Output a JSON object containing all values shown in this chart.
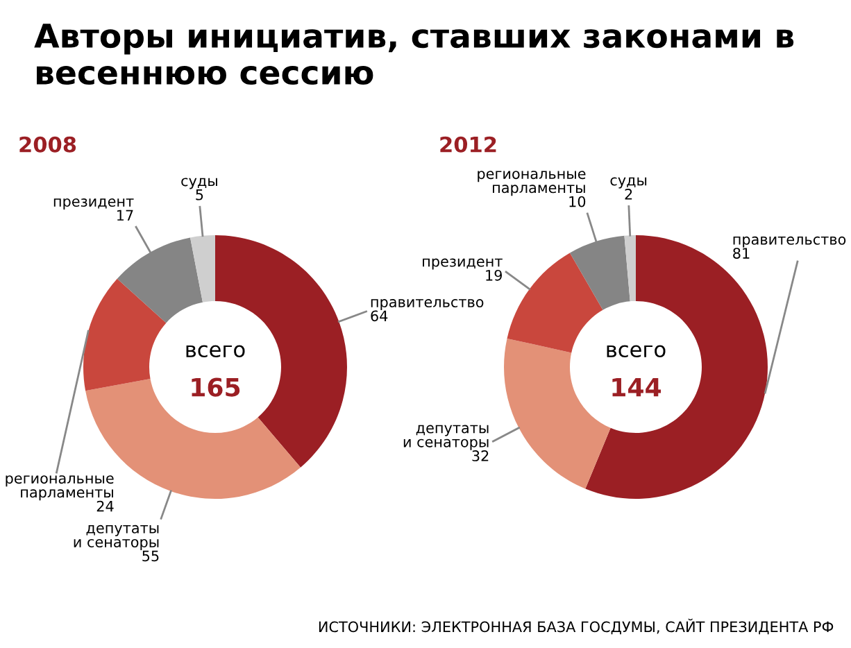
{
  "chart_data": [
    {
      "type": "donut",
      "title": "Авторы инициатив, ставших законами в весеннюю сессию",
      "subtitle": "2008",
      "categories": [
        "правительство",
        "депутаты и сенаторы",
        "региональные парламенты",
        "президент",
        "суды"
      ],
      "values": [
        64,
        55,
        24,
        17,
        5
      ],
      "colors": [
        "#9b1f24",
        "#e39177",
        "#c9473d",
        "#858585",
        "#cfcfcf"
      ],
      "data_labels": true,
      "annotations": [
        "всего",
        "165"
      ]
    },
    {
      "type": "donut",
      "subtitle": "2012",
      "categories": [
        "правительство",
        "депутаты и сенаторы",
        "президент",
        "региональные парламенты",
        "суды"
      ],
      "values": [
        81,
        32,
        19,
        10,
        2
      ],
      "colors": [
        "#9b1f24",
        "#e39177",
        "#c9473d",
        "#858585",
        "#cfcfcf"
      ],
      "data_labels": true,
      "annotations": [
        "всего",
        "144",
        "ИСТОЧНИКИ: ЭЛЕКТРОННАЯ БАЗА ГОСДУМЫ, САЙТ ПРЕЗИДЕНТА РФ"
      ]
    }
  ]
}
